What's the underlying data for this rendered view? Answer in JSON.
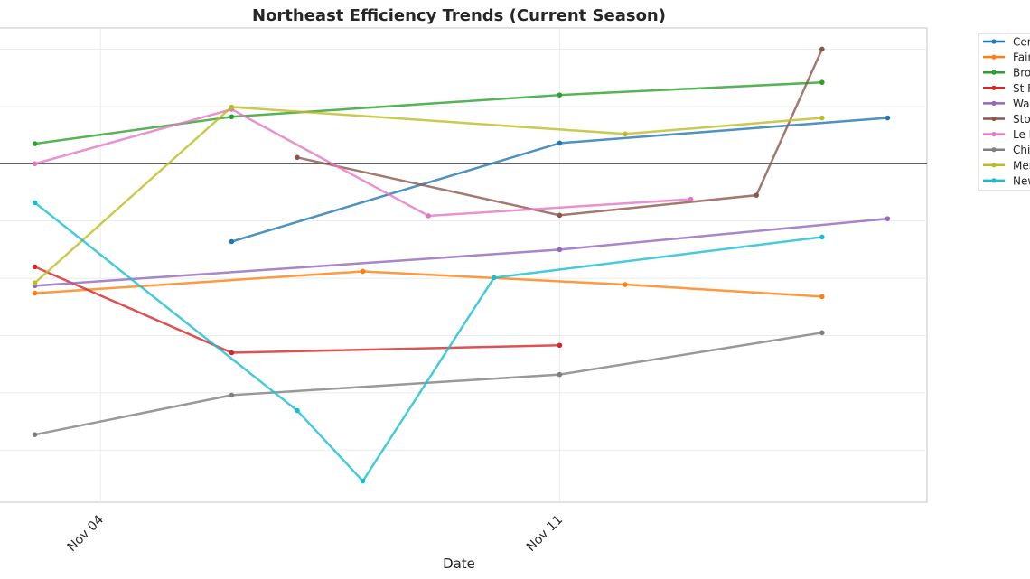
{
  "chart_data": {
    "type": "line",
    "title": "Northeast Efficiency Trends (Current Season)",
    "xlabel": "Date",
    "ylabel": "",
    "x_ticks": [
      {
        "date": "2024-11-04",
        "label": "Nov 04"
      },
      {
        "date": "2024-11-11",
        "label": "Nov 11"
      }
    ],
    "xlim": [
      "2024-11-02.4",
      "2024-11-16.6"
    ],
    "ylim": [
      -5.91,
      2.37
    ],
    "reference_line": 0,
    "grid": true,
    "legend_position": "outside-right",
    "series": [
      {
        "name": "Cen",
        "color": "#1f77b4",
        "points": [
          [
            "2024-11-06",
            -1.36
          ],
          [
            "2024-11-11",
            0.36
          ],
          [
            "2024-11-16",
            0.8
          ]
        ]
      },
      {
        "name": "Fair",
        "color": "#ff7f0e",
        "points": [
          [
            "2024-11-03",
            -2.26
          ],
          [
            "2024-11-08",
            -1.88
          ],
          [
            "2024-11-12",
            -2.11
          ],
          [
            "2024-11-15",
            -2.32
          ]
        ]
      },
      {
        "name": "Bro",
        "color": "#2ca02c",
        "points": [
          [
            "2024-11-03",
            0.35
          ],
          [
            "2024-11-06",
            0.82
          ],
          [
            "2024-11-11",
            1.2
          ],
          [
            "2024-11-15",
            1.42
          ]
        ]
      },
      {
        "name": "St F",
        "color": "#d62728",
        "points": [
          [
            "2024-11-03",
            -1.8
          ],
          [
            "2024-11-06",
            -3.3
          ],
          [
            "2024-11-11",
            -3.17
          ]
        ]
      },
      {
        "name": "Wac",
        "color": "#9467bd",
        "points": [
          [
            "2024-11-03",
            -2.13
          ],
          [
            "2024-11-11",
            -1.5
          ],
          [
            "2024-11-16",
            -0.96
          ]
        ]
      },
      {
        "name": "Sto",
        "color": "#8c564b",
        "points": [
          [
            "2024-11-07",
            0.11
          ],
          [
            "2024-11-11",
            -0.9
          ],
          [
            "2024-11-14",
            -0.55
          ],
          [
            "2024-11-15",
            2.0
          ]
        ]
      },
      {
        "name": "Le I",
        "color": "#e377c2",
        "points": [
          [
            "2024-11-03",
            0.0
          ],
          [
            "2024-11-06",
            0.95
          ],
          [
            "2024-11-09",
            -0.91
          ],
          [
            "2024-11-13",
            -0.62
          ]
        ]
      },
      {
        "name": "Chi",
        "color": "#7f7f7f",
        "points": [
          [
            "2024-11-03",
            -4.73
          ],
          [
            "2024-11-06",
            -4.04
          ],
          [
            "2024-11-11",
            -3.68
          ],
          [
            "2024-11-15",
            -2.95
          ]
        ]
      },
      {
        "name": "Mer",
        "color": "#bcbd22",
        "points": [
          [
            "2024-11-03",
            -2.08
          ],
          [
            "2024-11-06",
            0.99
          ],
          [
            "2024-11-12",
            0.52
          ],
          [
            "2024-11-15",
            0.8
          ]
        ]
      },
      {
        "name": "New",
        "color": "#17becf",
        "points": [
          [
            "2024-11-03",
            -0.68
          ],
          [
            "2024-11-07",
            -4.31
          ],
          [
            "2024-11-08",
            -5.54
          ],
          [
            "2024-11-10",
            -1.99
          ],
          [
            "2024-11-15",
            -1.28
          ]
        ]
      }
    ]
  }
}
